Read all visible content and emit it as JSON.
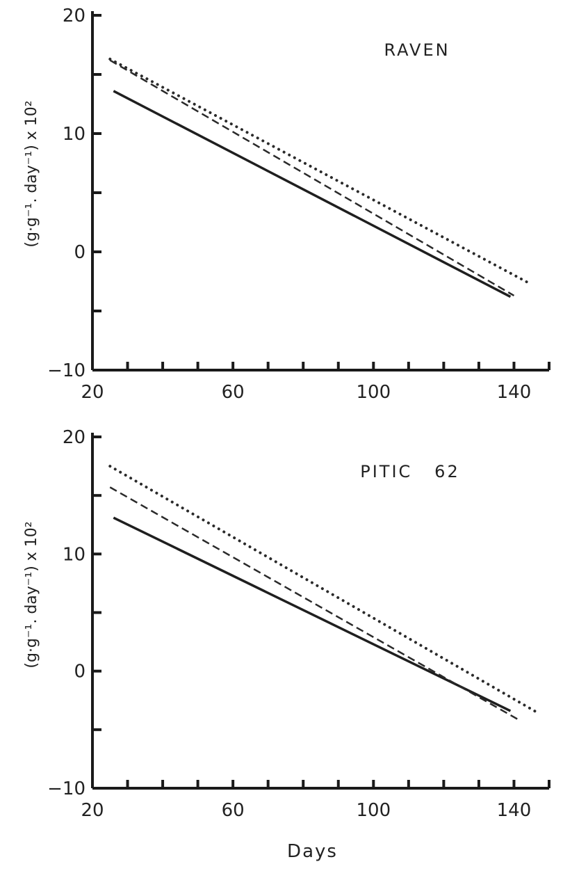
{
  "chart_data": [
    {
      "type": "line",
      "panel_label": "RAVEN",
      "ylabel": "(g·g⁻¹. day⁻¹) x 10²",
      "xlabel": "",
      "xlim": [
        20,
        150
      ],
      "ylim": [
        -10,
        20
      ],
      "x_ticks": [
        20,
        60,
        100,
        140
      ],
      "y_ticks": [
        -10,
        0,
        10,
        20
      ],
      "x_minor_step": 10,
      "y_minor_step": 5,
      "grid": false,
      "series": [
        {
          "style": "solid",
          "color": "#1f1f1f",
          "x": [
            26,
            139
          ],
          "y": [
            13.6,
            -3.8
          ]
        },
        {
          "style": "dashed",
          "color": "#2a2a2a",
          "x": [
            25,
            140
          ],
          "y": [
            16.2,
            -3.7
          ]
        },
        {
          "style": "dotted",
          "color": "#2a2a2a",
          "x": [
            25,
            144
          ],
          "y": [
            16.3,
            -2.6
          ]
        }
      ]
    },
    {
      "type": "line",
      "panel_label": "PITIC   62",
      "ylabel": "(g·g⁻¹. day⁻¹) x 10²",
      "xlabel": "Days",
      "xlim": [
        20,
        150
      ],
      "ylim": [
        -10,
        20
      ],
      "x_ticks": [
        20,
        60,
        100,
        140
      ],
      "y_ticks": [
        -10,
        0,
        10,
        20
      ],
      "x_minor_step": 10,
      "y_minor_step": 5,
      "grid": false,
      "series": [
        {
          "style": "solid",
          "color": "#1f1f1f",
          "x": [
            26,
            139
          ],
          "y": [
            13.1,
            -3.4
          ]
        },
        {
          "style": "dashed",
          "color": "#2a2a2a",
          "x": [
            25,
            141
          ],
          "y": [
            15.7,
            -4.1
          ]
        },
        {
          "style": "dotted",
          "color": "#2a2a2a",
          "x": [
            25,
            147
          ],
          "y": [
            17.5,
            -3.6
          ]
        }
      ]
    }
  ]
}
